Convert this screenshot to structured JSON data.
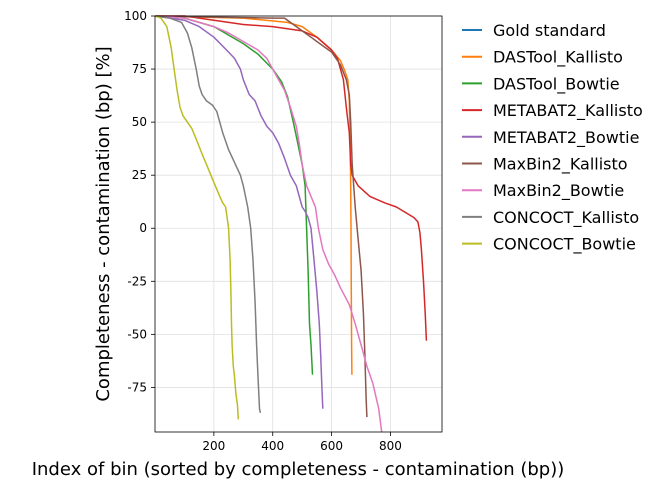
{
  "chart_data": {
    "type": "line",
    "title": "",
    "xlabel": "Index of bin (sorted by completeness - contamination (bp))",
    "ylabel": "Completeness - contamination (bp) [%]",
    "xlim": [
      0,
      975
    ],
    "ylim": [
      -96,
      100
    ],
    "x_ticks": [
      200,
      400,
      600,
      800
    ],
    "y_ticks": [
      -75,
      -50,
      -25,
      0,
      25,
      50,
      75,
      100
    ],
    "x_tick_labels": [
      "200",
      "400",
      "600",
      "800"
    ],
    "y_tick_labels": [
      "-75",
      "-50",
      "-25",
      "0",
      "25",
      "50",
      "75",
      "100"
    ],
    "grid": true,
    "legend_position": "outside-right",
    "series": [
      {
        "name": "Gold standard",
        "color": "#1f77b4",
        "points": []
      },
      {
        "name": "DASTool_Kallisto",
        "color": "#ff7f0e",
        "points": [
          [
            1,
            100
          ],
          [
            150,
            99.5
          ],
          [
            300,
            99
          ],
          [
            450,
            97
          ],
          [
            500,
            95
          ],
          [
            550,
            90
          ],
          [
            600,
            84
          ],
          [
            630,
            79
          ],
          [
            645,
            74
          ],
          [
            655,
            70
          ],
          [
            660,
            60
          ],
          [
            663,
            40
          ],
          [
            665,
            20
          ],
          [
            666,
            0
          ],
          [
            667,
            -30
          ],
          [
            668,
            -55
          ],
          [
            669,
            -69
          ]
        ]
      },
      {
        "name": "DASTool_Bowtie",
        "color": "#2ca02c",
        "points": [
          [
            1,
            100
          ],
          [
            100,
            99
          ],
          [
            200,
            95
          ],
          [
            250,
            91
          ],
          [
            300,
            87
          ],
          [
            350,
            82
          ],
          [
            400,
            75
          ],
          [
            430,
            69
          ],
          [
            450,
            62
          ],
          [
            470,
            50
          ],
          [
            485,
            40
          ],
          [
            500,
            30
          ],
          [
            510,
            20
          ],
          [
            515,
            0
          ],
          [
            520,
            -20
          ],
          [
            525,
            -45
          ],
          [
            530,
            -55
          ],
          [
            535,
            -69
          ]
        ]
      },
      {
        "name": "METABAT2_Kallisto",
        "color": "#d62728",
        "points": [
          [
            1,
            100
          ],
          [
            100,
            100
          ],
          [
            200,
            98
          ],
          [
            300,
            96
          ],
          [
            400,
            95
          ],
          [
            500,
            93
          ],
          [
            550,
            90
          ],
          [
            600,
            84
          ],
          [
            620,
            80
          ],
          [
            640,
            70
          ],
          [
            650,
            57
          ],
          [
            660,
            45
          ],
          [
            665,
            30
          ],
          [
            670,
            25
          ],
          [
            690,
            20
          ],
          [
            730,
            15
          ],
          [
            780,
            12
          ],
          [
            820,
            10
          ],
          [
            880,
            5
          ],
          [
            893,
            3
          ],
          [
            900,
            -2
          ],
          [
            905,
            -10
          ],
          [
            912,
            -25
          ],
          [
            918,
            -40
          ],
          [
            922,
            -53
          ]
        ]
      },
      {
        "name": "METABAT2_Bowtie",
        "color": "#9467bd",
        "points": [
          [
            1,
            100
          ],
          [
            50,
            99
          ],
          [
            100,
            98
          ],
          [
            150,
            95
          ],
          [
            200,
            90
          ],
          [
            250,
            83
          ],
          [
            270,
            80
          ],
          [
            290,
            75
          ],
          [
            300,
            70
          ],
          [
            320,
            63
          ],
          [
            340,
            60
          ],
          [
            360,
            53
          ],
          [
            380,
            48
          ],
          [
            400,
            45
          ],
          [
            420,
            40
          ],
          [
            440,
            33
          ],
          [
            460,
            25
          ],
          [
            480,
            20
          ],
          [
            500,
            10
          ],
          [
            510,
            8
          ],
          [
            520,
            5
          ],
          [
            530,
            0
          ],
          [
            540,
            -15
          ],
          [
            550,
            -30
          ],
          [
            558,
            -45
          ],
          [
            563,
            -60
          ],
          [
            567,
            -75
          ],
          [
            570,
            -85
          ]
        ]
      },
      {
        "name": "MaxBin2_Kallisto",
        "color": "#8c564b",
        "points": [
          [
            1,
            100
          ],
          [
            200,
            99.5
          ],
          [
            400,
            99
          ],
          [
            440,
            99
          ],
          [
            460,
            97
          ],
          [
            480,
            95
          ],
          [
            500,
            93
          ],
          [
            530,
            90
          ],
          [
            560,
            87
          ],
          [
            600,
            83
          ],
          [
            630,
            77
          ],
          [
            650,
            70
          ],
          [
            660,
            63
          ],
          [
            665,
            50
          ],
          [
            670,
            30
          ],
          [
            680,
            10
          ],
          [
            690,
            -5
          ],
          [
            700,
            -20
          ],
          [
            708,
            -40
          ],
          [
            713,
            -60
          ],
          [
            717,
            -80
          ],
          [
            720,
            -89
          ]
        ]
      },
      {
        "name": "MaxBin2_Bowtie",
        "color": "#e377c2",
        "points": [
          [
            1,
            100
          ],
          [
            100,
            99
          ],
          [
            200,
            95
          ],
          [
            250,
            92
          ],
          [
            300,
            88
          ],
          [
            350,
            84
          ],
          [
            380,
            80
          ],
          [
            400,
            75
          ],
          [
            420,
            70
          ],
          [
            440,
            65
          ],
          [
            460,
            57
          ],
          [
            480,
            48
          ],
          [
            490,
            40
          ],
          [
            500,
            30
          ],
          [
            515,
            20
          ],
          [
            530,
            15
          ],
          [
            545,
            10
          ],
          [
            555,
            0
          ],
          [
            570,
            -10
          ],
          [
            590,
            -17
          ],
          [
            610,
            -22
          ],
          [
            630,
            -28
          ],
          [
            660,
            -36
          ],
          [
            680,
            -45
          ],
          [
            700,
            -55
          ],
          [
            720,
            -65
          ],
          [
            740,
            -73
          ],
          [
            760,
            -85
          ],
          [
            770,
            -96
          ]
        ]
      },
      {
        "name": "CONCOCT_Kallisto",
        "color": "#7f7f7f",
        "points": [
          [
            1,
            100
          ],
          [
            50,
            99
          ],
          [
            90,
            97
          ],
          [
            110,
            92
          ],
          [
            125,
            85
          ],
          [
            140,
            75
          ],
          [
            150,
            67
          ],
          [
            160,
            63
          ],
          [
            175,
            60
          ],
          [
            195,
            58
          ],
          [
            210,
            55
          ],
          [
            230,
            45
          ],
          [
            250,
            37
          ],
          [
            270,
            31
          ],
          [
            290,
            25
          ],
          [
            300,
            20
          ],
          [
            315,
            10
          ],
          [
            325,
            0
          ],
          [
            333,
            -15
          ],
          [
            340,
            -35
          ],
          [
            345,
            -55
          ],
          [
            350,
            -70
          ],
          [
            355,
            -85
          ],
          [
            358,
            -87
          ]
        ]
      },
      {
        "name": "CONCOCT_Bowtie",
        "color": "#bcbd22",
        "points": [
          [
            1,
            100
          ],
          [
            20,
            99
          ],
          [
            40,
            95
          ],
          [
            55,
            85
          ],
          [
            65,
            75
          ],
          [
            75,
            65
          ],
          [
            85,
            57
          ],
          [
            95,
            53
          ],
          [
            110,
            50
          ],
          [
            125,
            47
          ],
          [
            140,
            42
          ],
          [
            160,
            35
          ],
          [
            175,
            30
          ],
          [
            190,
            25
          ],
          [
            205,
            20
          ],
          [
            220,
            15
          ],
          [
            230,
            12
          ],
          [
            240,
            10
          ],
          [
            245,
            5
          ],
          [
            250,
            0
          ],
          [
            255,
            -15
          ],
          [
            258,
            -30
          ],
          [
            260,
            -45
          ],
          [
            262,
            -55
          ],
          [
            266,
            -65
          ],
          [
            270,
            -70
          ],
          [
            275,
            -78
          ],
          [
            280,
            -83
          ],
          [
            283,
            -90
          ]
        ]
      }
    ]
  }
}
